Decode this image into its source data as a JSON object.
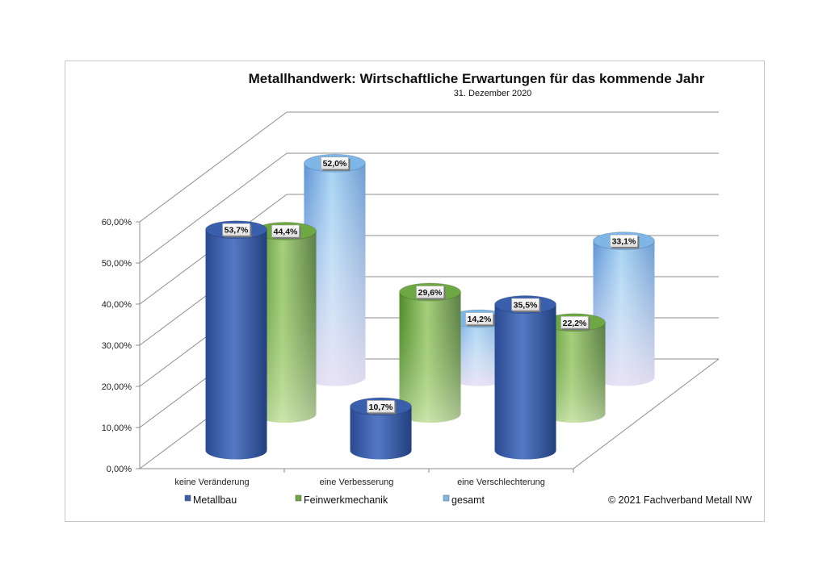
{
  "chart_data": {
    "type": "bar",
    "style": "3d-cylinder",
    "title": "Metallhandwerk: Wirtschaftliche Erwartungen für das kommende Jahr",
    "subtitle": "31. Dezember 2020",
    "categories": [
      "keine Veränderung",
      "eine Verbesserung",
      "eine Verschlechterung"
    ],
    "series": [
      {
        "name": "Metallbau",
        "values": [
          53.7,
          10.7,
          35.5
        ],
        "labels": [
          "53,7%",
          "10,7%",
          "35,5%"
        ],
        "color": "#3a5fad"
      },
      {
        "name": "Feinwerkmechanik",
        "values": [
          44.4,
          29.6,
          22.2
        ],
        "labels": [
          "44,4%",
          "29,6%",
          "22,2%"
        ],
        "color": "#6ea843"
      },
      {
        "name": "gesamt",
        "values": [
          52.0,
          14.2,
          33.1
        ],
        "labels": [
          "52,0%",
          "14,2%",
          "33,1%"
        ],
        "color": "#7fb6e8"
      }
    ],
    "yticks": [
      "0,00%",
      "10,00%",
      "20,00%",
      "30,00%",
      "40,00%",
      "50,00%",
      "60,00%"
    ],
    "ylim": [
      0,
      60
    ],
    "grid": true,
    "legend": "bottom"
  },
  "copyright": "© 2021 Fachverband Metall NW"
}
